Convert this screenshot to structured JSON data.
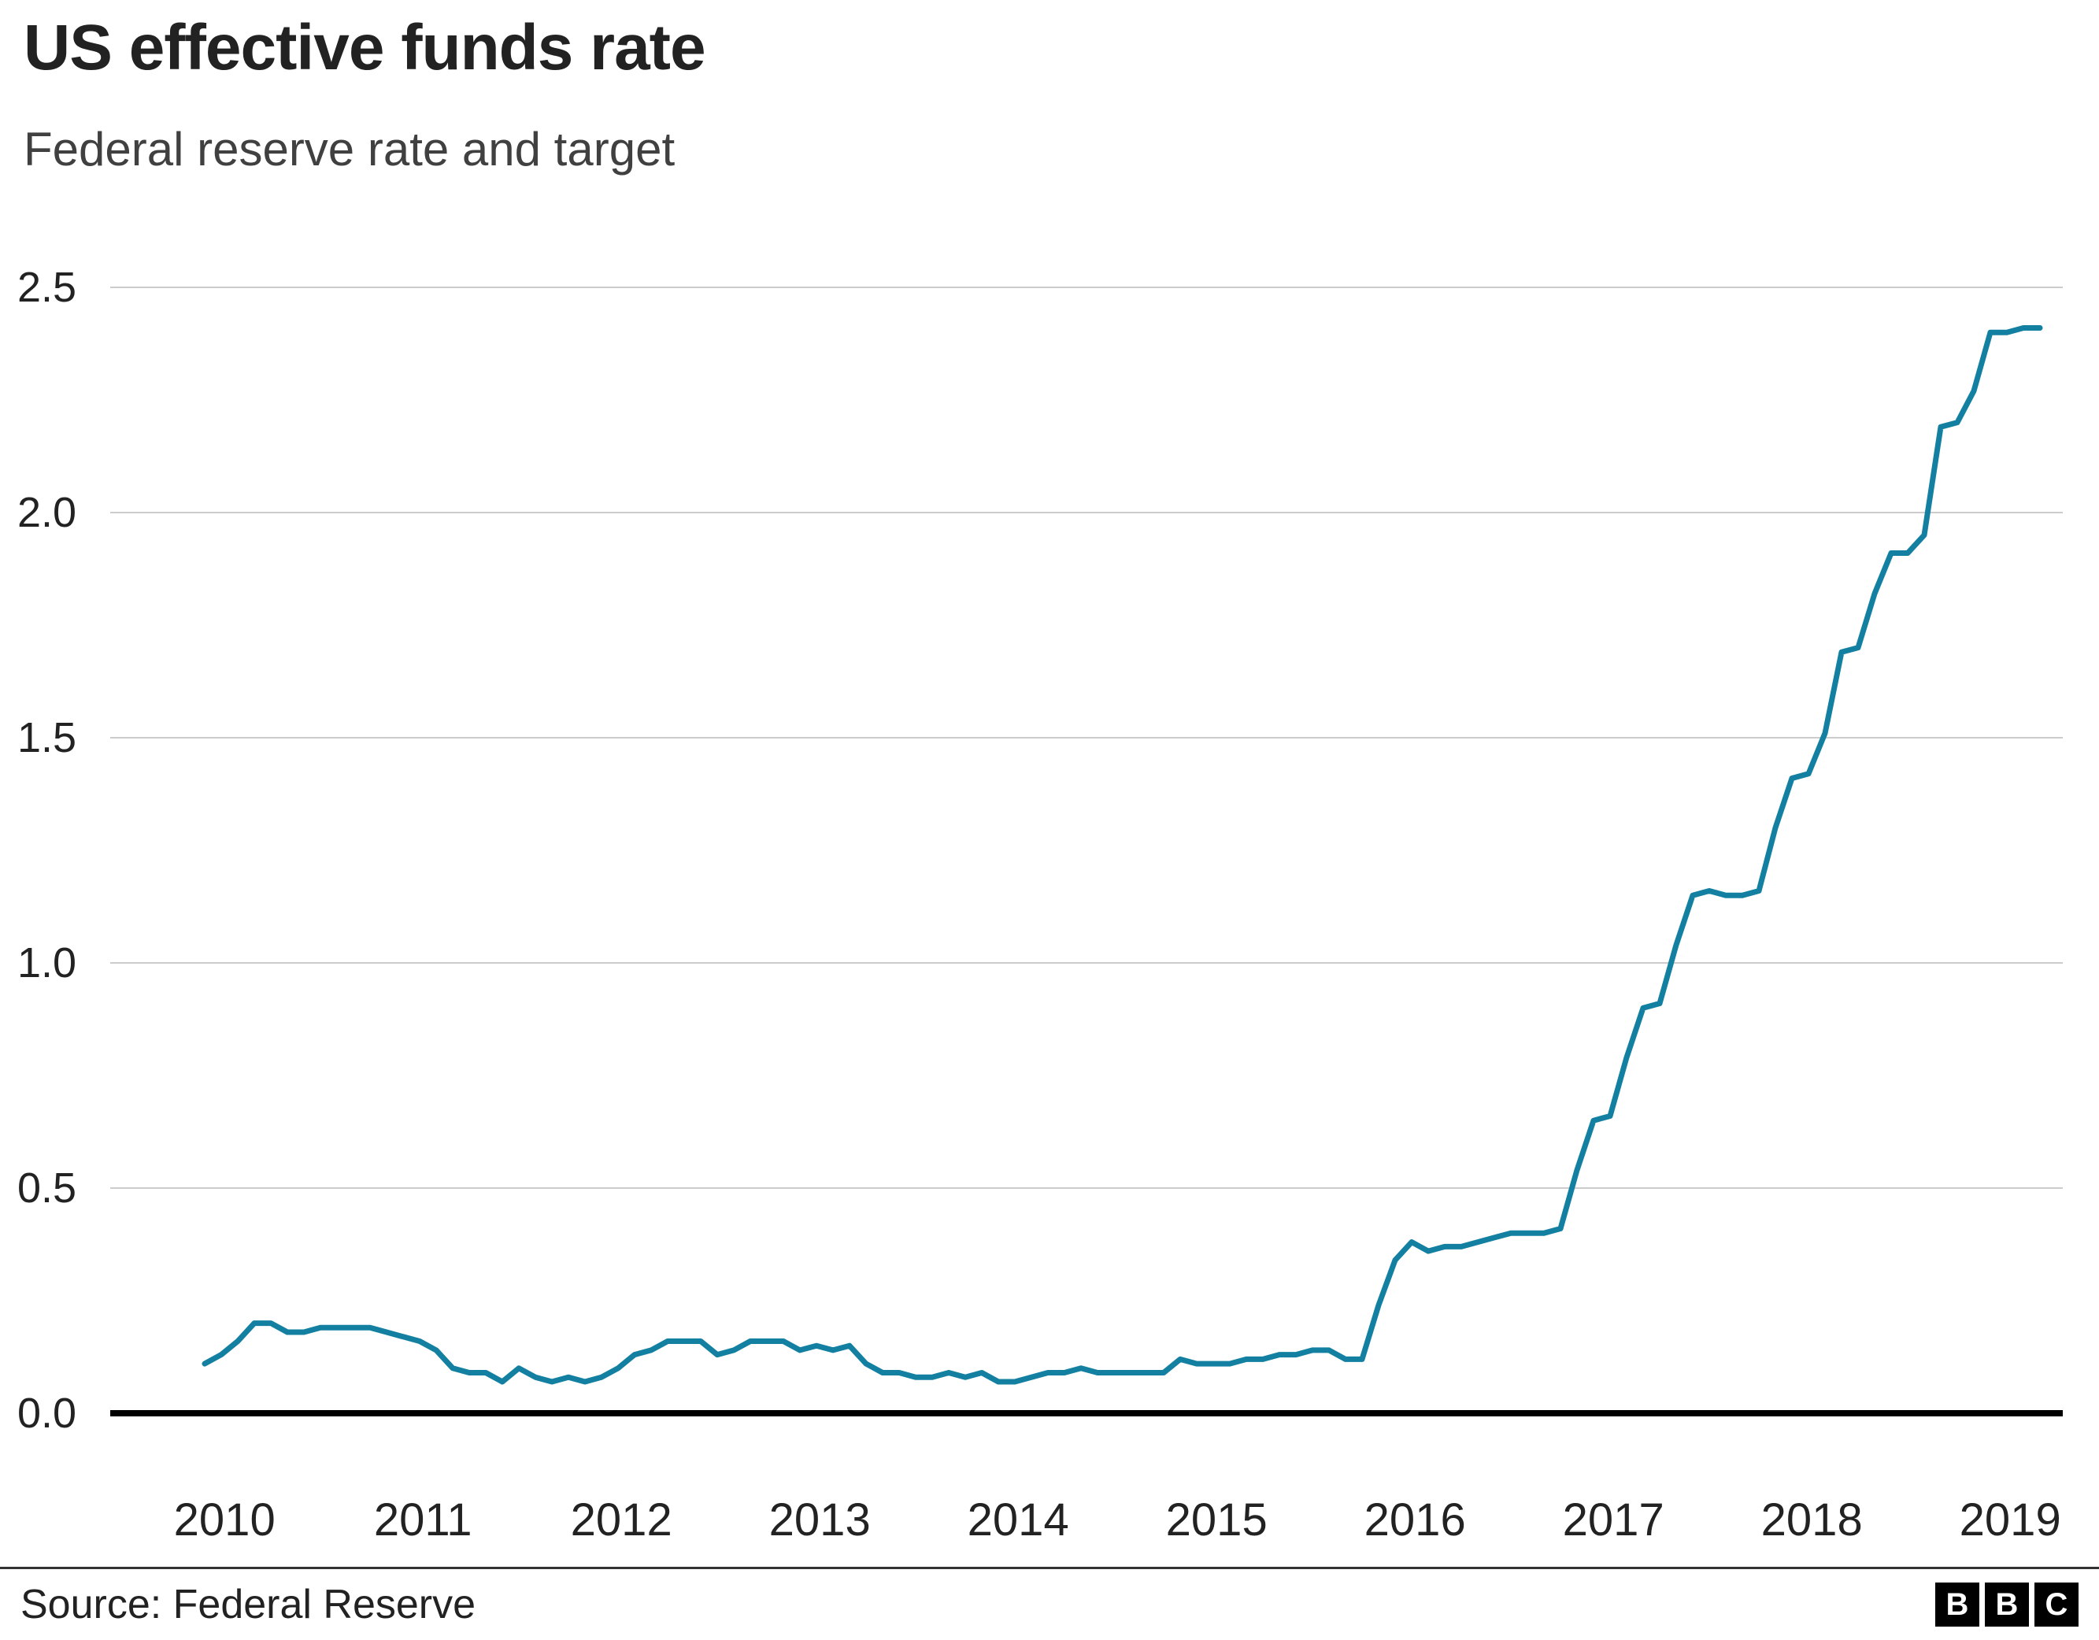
{
  "header": {
    "title": "US effective funds rate",
    "subtitle": "Federal reserve rate and target"
  },
  "footer": {
    "source": "Source: Federal Reserve",
    "logo_letters": [
      "B",
      "B",
      "C"
    ]
  },
  "chart_data": {
    "type": "line",
    "title": "US effective funds rate",
    "subtitle": "Federal reserve rate and target",
    "xlabel": "",
    "ylabel": "",
    "ylim": [
      0.0,
      2.5
    ],
    "y_ticks": [
      "0.0",
      "0.5",
      "1.0",
      "1.5",
      "2.0",
      "2.5"
    ],
    "y_tick_values": [
      0.0,
      0.5,
      1.0,
      1.5,
      2.0,
      2.5
    ],
    "x_tick_years": [
      2010,
      2011,
      2012,
      2013,
      2014,
      2015,
      2016,
      2017,
      2018,
      2019
    ],
    "grid": "horizontal",
    "legend": "none",
    "line_color": "#1380A1",
    "grid_color": "#cccccc",
    "baseline_color": "#000000",
    "series": [
      {
        "name": "US effective federal funds rate",
        "start_year": 2010,
        "frequency": "monthly",
        "values": [
          0.11,
          0.13,
          0.16,
          0.2,
          0.2,
          0.18,
          0.18,
          0.19,
          0.19,
          0.19,
          0.19,
          0.18,
          0.17,
          0.16,
          0.14,
          0.1,
          0.09,
          0.09,
          0.07,
          0.1,
          0.08,
          0.07,
          0.08,
          0.07,
          0.08,
          0.1,
          0.13,
          0.14,
          0.16,
          0.16,
          0.16,
          0.13,
          0.14,
          0.16,
          0.16,
          0.16,
          0.14,
          0.15,
          0.14,
          0.15,
          0.11,
          0.09,
          0.09,
          0.08,
          0.08,
          0.09,
          0.08,
          0.09,
          0.07,
          0.07,
          0.08,
          0.09,
          0.09,
          0.1,
          0.09,
          0.09,
          0.09,
          0.09,
          0.09,
          0.12,
          0.11,
          0.11,
          0.11,
          0.12,
          0.12,
          0.13,
          0.13,
          0.14,
          0.14,
          0.12,
          0.12,
          0.24,
          0.34,
          0.38,
          0.36,
          0.37,
          0.37,
          0.38,
          0.39,
          0.4,
          0.4,
          0.4,
          0.41,
          0.54,
          0.65,
          0.66,
          0.79,
          0.9,
          0.91,
          1.04,
          1.15,
          1.16,
          1.15,
          1.15,
          1.16,
          1.3,
          1.41,
          1.42,
          1.51,
          1.69,
          1.7,
          1.82,
          1.91,
          1.91,
          1.95,
          2.19,
          2.2,
          2.27,
          2.4,
          2.4,
          2.41,
          2.41
        ]
      }
    ]
  }
}
